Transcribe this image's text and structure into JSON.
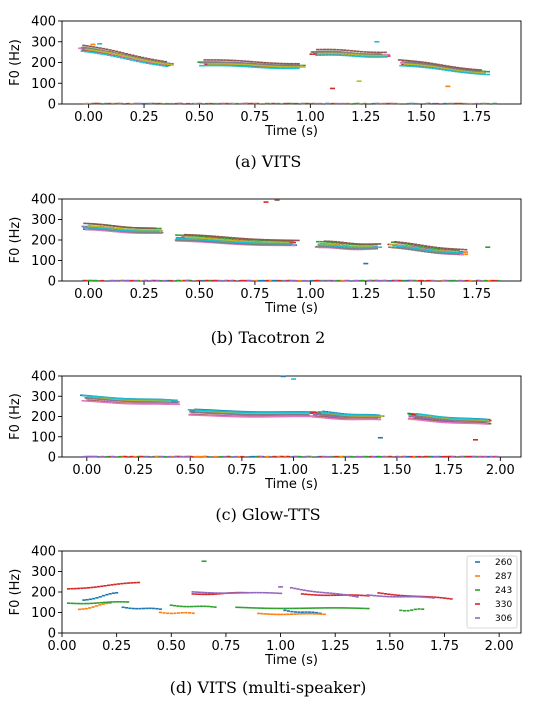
{
  "colors": [
    "#1f77b4",
    "#ff7f0e",
    "#2ca02c",
    "#d62728",
    "#9467bd",
    "#8c564b",
    "#e377c2",
    "#7f7f7f",
    "#bcbd22",
    "#17becf"
  ],
  "chart_data": [
    {
      "type": "scatter",
      "caption": "(a) VITS",
      "xlabel": "Time (s)",
      "ylabel": "F0 (Hz)",
      "xlim": [
        -0.12,
        1.95
      ],
      "ylim": [
        0,
        400
      ],
      "xticks": [
        "0.00",
        "0.25",
        "0.50",
        "0.75",
        "1.00",
        "1.25",
        "1.50",
        "1.75"
      ],
      "yticks": [
        "0",
        "100",
        "200",
        "300",
        "400"
      ],
      "legend": null,
      "segments": [
        [
          -0.02,
          0.36,
          270,
          195
        ],
        [
          0.52,
          0.95,
          200,
          185
        ],
        [
          1.02,
          1.33,
          250,
          240
        ],
        [
          1.42,
          1.78,
          200,
          155
        ]
      ],
      "spread": 16,
      "nlines": 10,
      "outliers": [
        [
          0.02,
          287,
          1
        ],
        [
          1.1,
          75,
          3
        ],
        [
          1.22,
          110,
          8
        ],
        [
          1.62,
          85,
          1
        ],
        [
          0.05,
          290,
          9
        ],
        [
          1.3,
          300,
          9
        ]
      ]
    },
    {
      "type": "scatter",
      "caption": "(b) Tacotron 2",
      "xlabel": "Time (s)",
      "ylabel": "F0 (Hz)",
      "xlim": [
        -0.12,
        1.95
      ],
      "ylim": [
        0,
        400
      ],
      "xticks": [
        "0.00",
        "0.25",
        "0.50",
        "0.75",
        "1.00",
        "1.25",
        "1.50",
        "1.75"
      ],
      "yticks": [
        "0",
        "100",
        "200",
        "300",
        "400"
      ],
      "legend": null,
      "segments": [
        [
          0.0,
          0.32,
          265,
          245
        ],
        [
          0.42,
          0.92,
          210,
          185
        ],
        [
          1.05,
          1.3,
          178,
          168
        ],
        [
          1.38,
          1.68,
          175,
          140
        ]
      ],
      "spread": 18,
      "nlines": 10,
      "outliers": [
        [
          0.8,
          385,
          3
        ],
        [
          0.85,
          395,
          5
        ],
        [
          1.25,
          85,
          0
        ],
        [
          1.8,
          165,
          2
        ],
        [
          1.7,
          140,
          1
        ]
      ]
    },
    {
      "type": "scatter",
      "caption": "(c) Glow-TTS",
      "xlabel": "Time (s)",
      "ylabel": "F0 (Hz)",
      "xlim": [
        -0.12,
        2.1
      ],
      "ylim": [
        0,
        400
      ],
      "xticks": [
        "0.00",
        "0.25",
        "0.50",
        "0.75",
        "1.00",
        "1.25",
        "1.50",
        "1.75",
        "2.00"
      ],
      "yticks": [
        "0",
        "100",
        "200",
        "300",
        "400"
      ],
      "legend": null,
      "segments": [
        [
          0.0,
          0.42,
          285,
          265
        ],
        [
          0.52,
          1.08,
          215,
          205
        ],
        [
          1.12,
          1.42,
          205,
          190
        ],
        [
          1.58,
          1.93,
          195,
          168
        ]
      ],
      "spread": 18,
      "nlines": 10,
      "outliers": [
        [
          0.95,
          398,
          0
        ],
        [
          1.0,
          385,
          9
        ],
        [
          1.42,
          95,
          0
        ],
        [
          1.88,
          85,
          3
        ]
      ]
    },
    {
      "type": "scatter",
      "caption": "(d) VITS (multi-speaker)",
      "xlabel": "Time (s)",
      "ylabel": "F0 (Hz)",
      "xlim": [
        0.0,
        2.1
      ],
      "ylim": [
        0,
        400
      ],
      "xticks": [
        "0.00",
        "0.25",
        "0.50",
        "0.75",
        "1.00",
        "1.25",
        "1.50",
        "1.75",
        "2.00"
      ],
      "yticks": [
        "0",
        "100",
        "200",
        "300",
        "400"
      ],
      "legend": [
        "260",
        "287",
        "243",
        "330",
        "306"
      ],
      "series": [
        {
          "name": "260",
          "segments": [
            [
              0.1,
              0.25,
              160,
              195
            ],
            [
              0.28,
              0.45,
              125,
              115
            ],
            [
              1.02,
              1.18,
              110,
              95
            ]
          ]
        },
        {
          "name": "287",
          "segments": [
            [
              0.08,
              0.22,
              115,
              145
            ],
            [
              0.45,
              0.6,
              100,
              95
            ],
            [
              0.9,
              1.2,
              95,
              90
            ]
          ]
        },
        {
          "name": "243",
          "segments": [
            [
              0.03,
              0.3,
              145,
              150
            ],
            [
              0.5,
              0.7,
              135,
              125
            ],
            [
              0.8,
              1.4,
              125,
              118
            ],
            [
              1.55,
              1.65,
              110,
              115
            ]
          ]
        },
        {
          "name": "330",
          "segments": [
            [
              0.03,
              0.35,
              215,
              245
            ],
            [
              0.6,
              0.85,
              190,
              195
            ],
            [
              1.1,
              1.4,
              190,
              180
            ],
            [
              1.45,
              1.78,
              195,
              165
            ]
          ]
        },
        {
          "name": "306",
          "segments": [
            [
              0.6,
              1.0,
              200,
              192
            ],
            [
              1.05,
              1.35,
              220,
              175
            ],
            [
              1.4,
              1.7,
              185,
              170
            ]
          ]
        }
      ],
      "outliers": [
        [
          0.65,
          350,
          2
        ],
        [
          1.0,
          225,
          4
        ]
      ]
    }
  ]
}
